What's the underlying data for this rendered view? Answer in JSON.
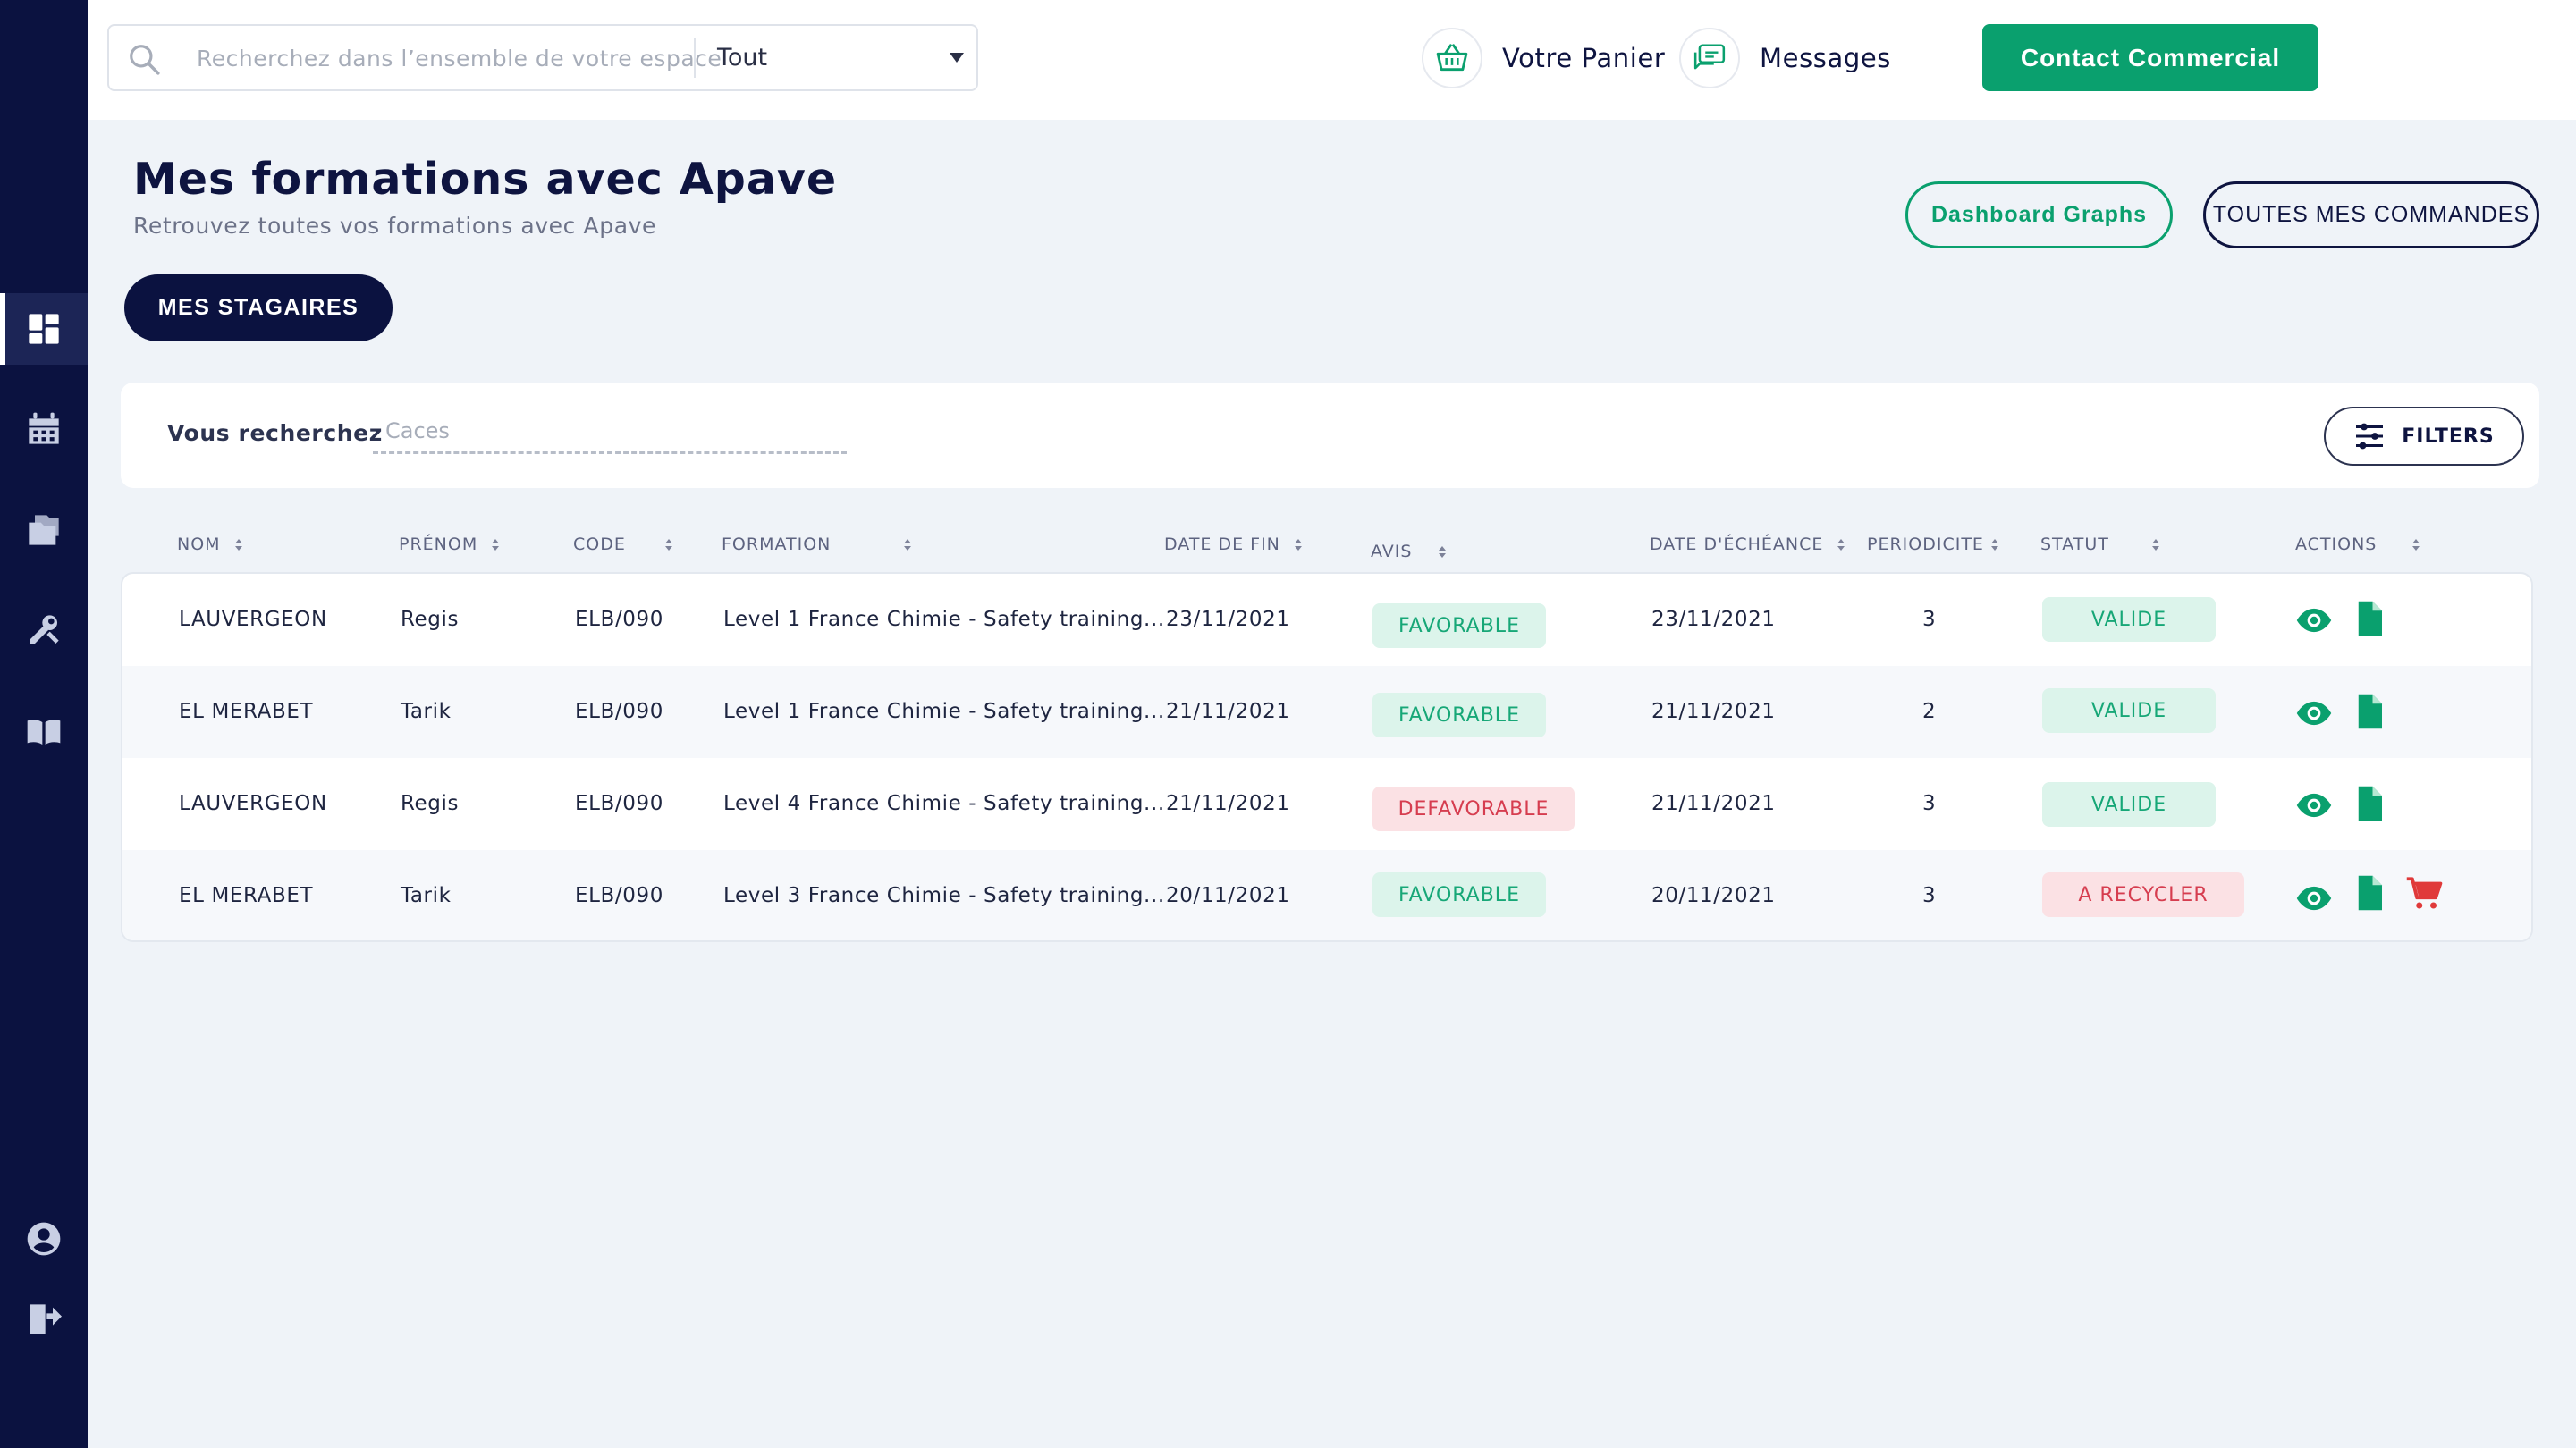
{
  "search": {
    "placeholder": "Recherchez dans l’ensemble de votre espace",
    "scope": "Tout"
  },
  "topnav": {
    "cart_label": "Votre Panier",
    "messages_label": "Messages",
    "contact_label": "Contact Commercial"
  },
  "header": {
    "title": "Mes formations avec Apave",
    "subtitle": "Retrouvez toutes vos formations avec Apave",
    "dashboard_label": "Dashboard Graphs",
    "orders_label": "TOUTES MES COMMANDES",
    "trainees_label": "MES STAGAIRES"
  },
  "filter": {
    "label": "Vous recherchez",
    "placeholder": "Caces",
    "filters_label": "FILTERS"
  },
  "table": {
    "columns": [
      "NOM",
      "PRÉNOM",
      "CODE",
      "FORMATION",
      "DATE DE FIN",
      "AVIS",
      "DATE D'ÉCHÉANCE",
      "PERIODICITE",
      "STATUT",
      "ACTIONS"
    ],
    "rows": [
      {
        "nom": "LAUVERGEON",
        "prenom": "Regis",
        "code": "ELB/090",
        "formation": "Level 1 France Chimie - Safety training...",
        "date_fin": "23/11/2021",
        "avis": "FAVORABLE",
        "echeance": "23/11/2021",
        "periodicite": "3",
        "statut": "VALIDE",
        "cart": false
      },
      {
        "nom": "EL MERABET",
        "prenom": "Tarik",
        "code": "ELB/090",
        "formation": "Level 1 France Chimie - Safety training...",
        "date_fin": "21/11/2021",
        "avis": "FAVORABLE",
        "echeance": "21/11/2021",
        "periodicite": "2",
        "statut": "VALIDE",
        "cart": false
      },
      {
        "nom": "LAUVERGEON",
        "prenom": "Regis",
        "code": "ELB/090",
        "formation": "Level 4 France Chimie - Safety training...",
        "date_fin": "21/11/2021",
        "avis": "DEFAVORABLE",
        "echeance": "21/11/2021",
        "periodicite": "3",
        "statut": "VALIDE",
        "cart": false
      },
      {
        "nom": "EL MERABET",
        "prenom": "Tarik",
        "code": "ELB/090",
        "formation": "Level 3 France Chimie - Safety training...",
        "date_fin": "20/11/2021",
        "avis": "FAVORABLE",
        "echeance": "20/11/2021",
        "periodicite": "3",
        "statut": "A RECYCLER",
        "cart": true
      }
    ]
  },
  "colors": {
    "sidebar": "#0b1240",
    "accent_green": "#0aa06e",
    "danger_red": "#d63d4f",
    "background": "#eff3f8"
  },
  "icons": {
    "sidebar": [
      "dashboard-icon",
      "calendar-icon",
      "folders-icon",
      "tools-icon",
      "book-icon",
      "user-account-icon",
      "logout-icon"
    ],
    "row_actions": [
      "eye-icon",
      "document-icon",
      "cart-icon"
    ]
  }
}
